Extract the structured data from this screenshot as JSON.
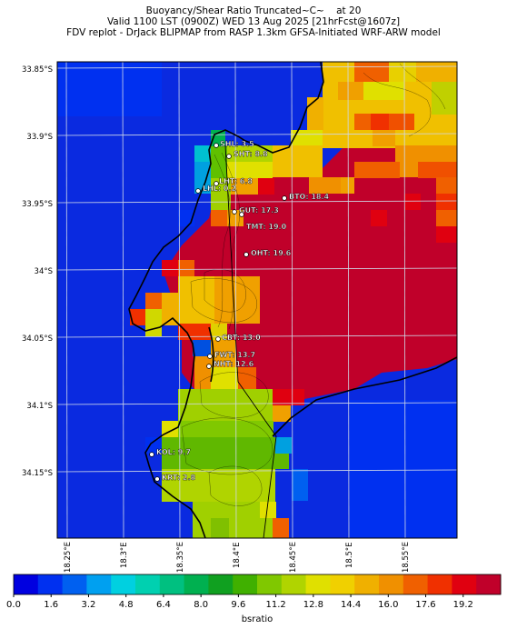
{
  "title": {
    "line1": "Buoyancy/Shear Ratio Truncated~C~    at 20",
    "line2": "Valid 1100 LST (0900Z) WED 13 Aug 2025 [21hrFcst@1607z]",
    "line3": "FDV replot - DrJack BLIPMAP from RASP 1.3km GFSA-Initiated WRF-ARW model"
  },
  "map": {
    "lat_labels": [
      "33.85°S",
      "33.9°S",
      "33.95°S",
      "34°S",
      "34.05°S",
      "34.1°S",
      "34.15°S"
    ],
    "lon_labels": [
      "18.25°E",
      "18.3°E",
      "18.35°E",
      "18.4°E",
      "18.45°E",
      "18.5°E",
      "18.55°E"
    ],
    "stations": [
      {
        "label": "SHL: 3.5"
      },
      {
        "label": "SHT: 8.8"
      },
      {
        "label": "LHT: 6.8"
      },
      {
        "label": "LHL: 0.2"
      },
      {
        "label": "BTO: 18.4"
      },
      {
        "label": "GUT: 17.3"
      },
      {
        "label": "TMT: 19.0"
      },
      {
        "label": "OHT: 19.6"
      },
      {
        "label": "CBT: 13.0"
      },
      {
        "label": "FWT: 13.7"
      },
      {
        "label": "NHT: 12.6"
      },
      {
        "label": "KOL: 9.7"
      },
      {
        "label": "KRT: 2.8"
      }
    ],
    "land_colour": "#c0002a",
    "sea_colour": "#0a2ae0"
  },
  "colorbar": {
    "label": "bsratio",
    "ticks": [
      "0.0",
      "1.6",
      "3.2",
      "4.8",
      "6.4",
      "8.0",
      "9.6",
      "11.2",
      "12.8",
      "14.4",
      "16.0",
      "17.6",
      "19.2"
    ],
    "colors": [
      "#0000e0",
      "#0030f0",
      "#0060f0",
      "#00a0f0",
      "#00d0e0",
      "#00d0b0",
      "#00c080",
      "#00b050",
      "#10a020",
      "#40b000",
      "#80c800",
      "#b0d400",
      "#e0e000",
      "#f0d000",
      "#f0b000",
      "#f09000",
      "#f06000",
      "#f03000",
      "#e00010",
      "#c0002a"
    ]
  }
}
